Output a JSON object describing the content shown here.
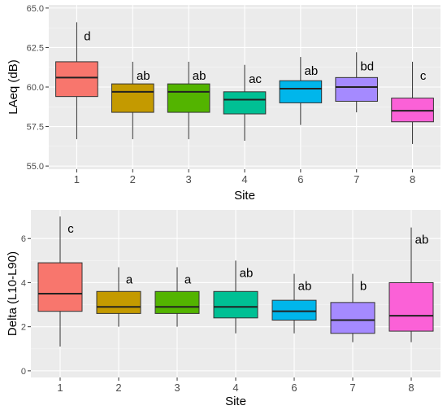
{
  "chart_data": [
    {
      "type": "boxplot",
      "xlabel": "Site",
      "ylabel": "LAeq (dB)",
      "ylim": [
        54.8,
        65.2
      ],
      "yticks": [
        55.0,
        57.5,
        60.0,
        62.5,
        65.0
      ],
      "ytick_labels": [
        "55.0",
        "57.5",
        "60.0",
        "62.5",
        "65.0"
      ],
      "grid": true,
      "categories": [
        "1",
        "2",
        "3",
        "4",
        "6",
        "7",
        "8"
      ],
      "boxes": [
        {
          "site": "1",
          "min": 56.7,
          "q1": 59.4,
          "median": 60.6,
          "q3": 61.6,
          "max": 64.1,
          "label": "d",
          "color": "#F8766D"
        },
        {
          "site": "2",
          "min": 56.7,
          "q1": 58.4,
          "median": 59.7,
          "q3": 60.2,
          "max": 61.6,
          "label": "ab",
          "color": "#C49A00"
        },
        {
          "site": "3",
          "min": 56.7,
          "q1": 58.4,
          "median": 59.7,
          "q3": 60.2,
          "max": 61.6,
          "label": "ab",
          "color": "#53B400"
        },
        {
          "site": "4",
          "min": 56.6,
          "q1": 58.3,
          "median": 59.2,
          "q3": 59.7,
          "max": 61.4,
          "label": "ac",
          "color": "#00C094"
        },
        {
          "site": "6",
          "min": 57.6,
          "q1": 59.0,
          "median": 59.9,
          "q3": 60.4,
          "max": 61.9,
          "label": "ab",
          "color": "#00B6EB"
        },
        {
          "site": "7",
          "min": 58.4,
          "q1": 59.1,
          "median": 60.0,
          "q3": 60.6,
          "max": 62.2,
          "label": "bd",
          "color": "#A58AFF"
        },
        {
          "site": "8",
          "min": 56.4,
          "q1": 57.8,
          "median": 58.5,
          "q3": 59.3,
          "max": 61.6,
          "label": "c",
          "color": "#FB61D7"
        }
      ]
    },
    {
      "type": "boxplot",
      "xlabel": "Site",
      "ylabel": "Delta (L10-L90)",
      "ylim": [
        -0.3,
        7.3
      ],
      "yticks": [
        0,
        2,
        4,
        6
      ],
      "ytick_labels": [
        "0",
        "2",
        "4",
        "6"
      ],
      "grid": true,
      "categories": [
        "1",
        "2",
        "3",
        "4",
        "6",
        "7",
        "8"
      ],
      "boxes": [
        {
          "site": "1",
          "min": 1.1,
          "q1": 2.7,
          "median": 3.5,
          "q3": 4.9,
          "max": 7.0,
          "label": "c",
          "color": "#F8766D"
        },
        {
          "site": "2",
          "min": 2.0,
          "q1": 2.6,
          "median": 2.9,
          "q3": 3.6,
          "max": 4.7,
          "label": "a",
          "color": "#C49A00"
        },
        {
          "site": "3",
          "min": 2.0,
          "q1": 2.6,
          "median": 2.9,
          "q3": 3.6,
          "max": 4.7,
          "label": "a",
          "color": "#53B400"
        },
        {
          "site": "4",
          "min": 1.7,
          "q1": 2.4,
          "median": 2.9,
          "q3": 3.6,
          "max": 5.0,
          "label": "ab",
          "color": "#00C094"
        },
        {
          "site": "6",
          "min": 1.7,
          "q1": 2.3,
          "median": 2.7,
          "q3": 3.2,
          "max": 4.4,
          "label": "ab",
          "color": "#00B6EB"
        },
        {
          "site": "7",
          "min": 1.3,
          "q1": 1.7,
          "median": 2.3,
          "q3": 3.1,
          "max": 4.4,
          "label": "b",
          "color": "#A58AFF"
        },
        {
          "site": "8",
          "min": 1.3,
          "q1": 1.8,
          "median": 2.5,
          "q3": 4.0,
          "max": 6.5,
          "label": "ab",
          "color": "#FB61D7"
        }
      ]
    }
  ]
}
